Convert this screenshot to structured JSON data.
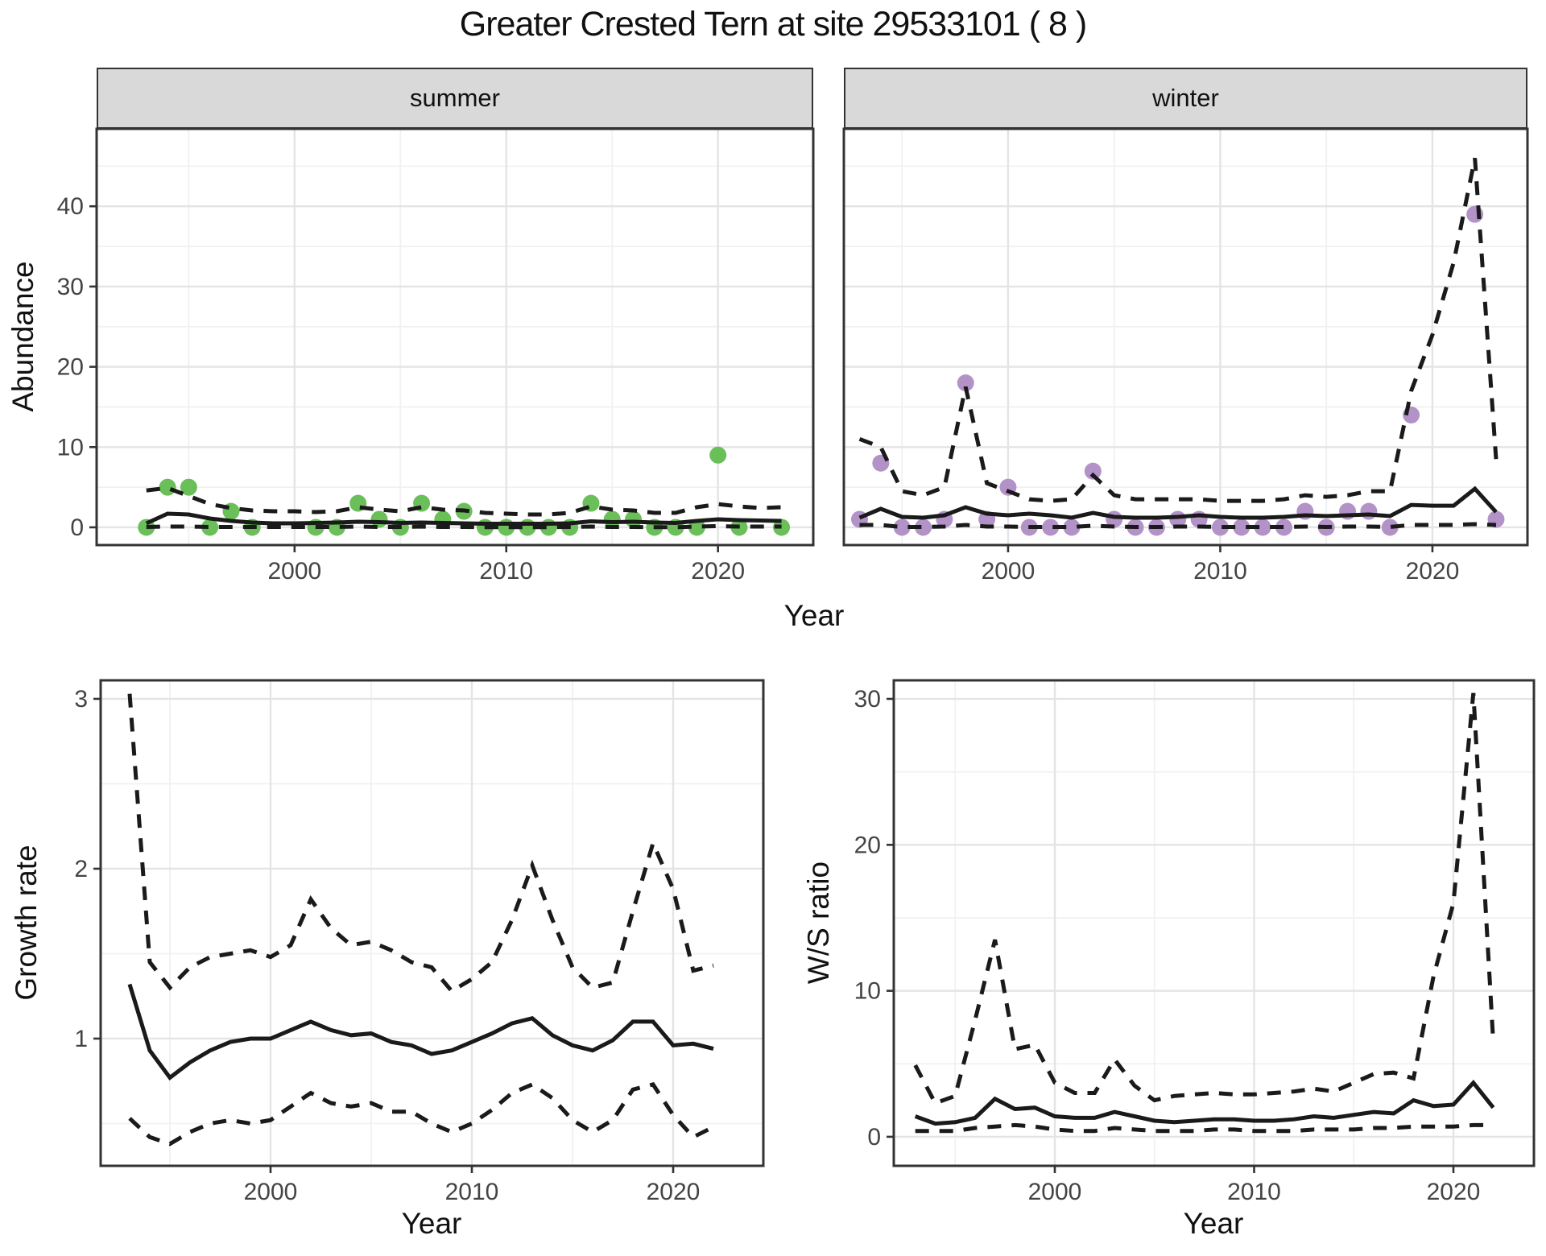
{
  "title": "Greater Crested Tern at site 29533101 ( 8 )",
  "colors": {
    "summer_points": "#6abf59",
    "winter_points": "#b392c8",
    "fit_line": "#1a1a1a",
    "panel_border": "#333333",
    "grid_major": "#e4e4e4",
    "grid_minor": "#f1f1f1",
    "tick_label": "#444444",
    "strip_background": "#d9d9d9"
  },
  "facets": {
    "summer": "summer",
    "winter": "winter"
  },
  "axis_titles": {
    "abundance": "Abundance",
    "year_top": "Year",
    "growth": "Growth rate",
    "year_bottom_left": "Year",
    "ws": "W/S ratio",
    "year_bottom_right": "Year"
  },
  "chart_data": [
    {
      "id": "abundance-summer",
      "type": "line",
      "facet": "summer",
      "xlabel": "Year",
      "ylabel": "Abundance",
      "xlim": [
        1990.65,
        2024.5
      ],
      "ylim": [
        -2.21,
        49.65
      ],
      "xticks": [
        2000,
        2010,
        2020
      ],
      "xticks_minor": [
        1995,
        2005,
        2015
      ],
      "yticks": [
        0,
        10,
        20,
        30,
        40
      ],
      "yticks_minor": [
        5,
        15,
        25,
        35,
        45
      ],
      "show_ylabels": true,
      "points": {
        "name": "summer observed counts",
        "color": "#6abf59",
        "x": [
          1993,
          1994,
          1995,
          1996,
          1997,
          1998,
          2001,
          2002,
          2003,
          2004,
          2005,
          2006,
          2007,
          2008,
          2009,
          2010,
          2011,
          2012,
          2013,
          2014,
          2015,
          2016,
          2017,
          2018,
          2019,
          2020,
          2021,
          2023
        ],
        "y": [
          0,
          5,
          5,
          0,
          2,
          0,
          0,
          0,
          3,
          1,
          0,
          3,
          1,
          2,
          0,
          0,
          0,
          0,
          0,
          3,
          1,
          1,
          0,
          0,
          0,
          9,
          0,
          0
        ]
      },
      "series": [
        {
          "name": "model median",
          "style": "solid",
          "x": [
            1993,
            1994,
            1995,
            1996,
            1997,
            1998,
            1999,
            2000,
            2001,
            2002,
            2003,
            2004,
            2005,
            2006,
            2007,
            2008,
            2009,
            2010,
            2011,
            2012,
            2013,
            2014,
            2015,
            2016,
            2017,
            2018,
            2019,
            2020,
            2021,
            2022,
            2023
          ],
          "y": [
            0.5,
            1.7,
            1.6,
            1.1,
            0.8,
            0.6,
            0.5,
            0.5,
            0.55,
            0.6,
            0.7,
            0.65,
            0.55,
            0.6,
            0.55,
            0.5,
            0.45,
            0.45,
            0.45,
            0.45,
            0.5,
            0.75,
            0.65,
            0.7,
            0.6,
            0.55,
            0.8,
            1.0,
            0.9,
            0.85,
            0.8
          ]
        },
        {
          "name": "upper credible interval",
          "style": "dashed",
          "x": [
            1993,
            1994,
            1995,
            1996,
            1997,
            1998,
            1999,
            2000,
            2001,
            2002,
            2003,
            2004,
            2005,
            2006,
            2007,
            2008,
            2009,
            2010,
            2011,
            2012,
            2013,
            2014,
            2015,
            2016,
            2017,
            2018,
            2019,
            2020,
            2021,
            2022,
            2023
          ],
          "y": [
            4.6,
            4.9,
            3.9,
            2.9,
            2.4,
            2.1,
            2.0,
            2.0,
            1.9,
            2.0,
            2.5,
            2.2,
            2.0,
            2.5,
            2.2,
            2.1,
            1.8,
            1.7,
            1.6,
            1.6,
            1.8,
            2.6,
            2.2,
            2.1,
            1.8,
            1.8,
            2.5,
            2.9,
            2.6,
            2.4,
            2.5
          ]
        },
        {
          "name": "lower credible interval",
          "style": "dashed",
          "x": [
            1993,
            1994,
            1995,
            1996,
            1997,
            1998,
            1999,
            2000,
            2001,
            2002,
            2003,
            2004,
            2005,
            2006,
            2007,
            2008,
            2009,
            2010,
            2011,
            2012,
            2013,
            2014,
            2015,
            2016,
            2017,
            2018,
            2019,
            2020,
            2021,
            2022,
            2023
          ],
          "y": [
            0.05,
            0.1,
            0.1,
            0.05,
            0.05,
            0.05,
            0.05,
            0.05,
            0.05,
            0.05,
            0.1,
            0.05,
            0.05,
            0.1,
            0.05,
            0.05,
            0.02,
            0.02,
            0.02,
            0.02,
            0.05,
            0.1,
            0.05,
            0.05,
            0.02,
            0.02,
            0.1,
            0.15,
            0.1,
            0.1,
            0.1
          ]
        }
      ]
    },
    {
      "id": "abundance-winter",
      "type": "line",
      "facet": "winter",
      "xlabel": "Year",
      "ylabel": "Abundance",
      "xlim": [
        1992.26,
        2024.48
      ],
      "ylim": [
        -2.21,
        49.65
      ],
      "xticks": [
        2000,
        2010,
        2020
      ],
      "xticks_minor": [
        1995,
        2005,
        2015
      ],
      "yticks": [
        0,
        10,
        20,
        30,
        40
      ],
      "yticks_minor": [
        5,
        15,
        25,
        35,
        45
      ],
      "show_ylabels": false,
      "points": {
        "name": "winter observed counts",
        "color": "#b392c8",
        "x": [
          1993,
          1994,
          1995,
          1996,
          1997,
          1998,
          1999,
          2000,
          2001,
          2002,
          2003,
          2004,
          2005,
          2006,
          2007,
          2008,
          2009,
          2010,
          2011,
          2012,
          2013,
          2014,
          2015,
          2016,
          2017,
          2018,
          2019,
          2022,
          2023
        ],
        "y": [
          1,
          8,
          0,
          0,
          1,
          18,
          1,
          5,
          0,
          0,
          0,
          7,
          1,
          0,
          0,
          1,
          1,
          0,
          0,
          0,
          0,
          2,
          0,
          2,
          2,
          0,
          14,
          39,
          1
        ]
      },
      "series": [
        {
          "name": "model median",
          "style": "solid",
          "x": [
            1993,
            1994,
            1995,
            1996,
            1997,
            1998,
            1999,
            2000,
            2001,
            2002,
            2003,
            2004,
            2005,
            2006,
            2007,
            2008,
            2009,
            2010,
            2011,
            2012,
            2013,
            2014,
            2015,
            2016,
            2017,
            2018,
            2019,
            2020,
            2021,
            2022,
            2023
          ],
          "y": [
            1.2,
            2.3,
            1.3,
            1.2,
            1.5,
            2.5,
            1.7,
            1.5,
            1.7,
            1.5,
            1.2,
            1.8,
            1.3,
            1.2,
            1.2,
            1.3,
            1.5,
            1.3,
            1.2,
            1.2,
            1.3,
            1.5,
            1.4,
            1.5,
            1.6,
            1.4,
            2.8,
            2.7,
            2.7,
            4.8,
            1.9
          ]
        },
        {
          "name": "upper credible interval",
          "style": "dashed",
          "x": [
            1993,
            1994,
            1995,
            1996,
            1997,
            1998,
            1999,
            2000,
            2001,
            2002,
            2003,
            2004,
            2005,
            2006,
            2007,
            2008,
            2009,
            2010,
            2011,
            2012,
            2013,
            2014,
            2015,
            2016,
            2017,
            2018,
            2019,
            2020,
            2021,
            2022,
            2023
          ],
          "y": [
            11,
            10,
            4.5,
            4.0,
            5.0,
            17.5,
            5.5,
            4.5,
            3.5,
            3.3,
            3.5,
            6.5,
            4.0,
            3.5,
            3.5,
            3.5,
            3.5,
            3.3,
            3.3,
            3.3,
            3.5,
            4.0,
            3.8,
            4.0,
            4.5,
            4.5,
            17,
            24,
            33,
            46,
            8.5
          ]
        },
        {
          "name": "lower credible interval",
          "style": "dashed",
          "x": [
            1993,
            1994,
            1995,
            1996,
            1997,
            1998,
            1999,
            2000,
            2001,
            2002,
            2003,
            2004,
            2005,
            2006,
            2007,
            2008,
            2009,
            2010,
            2011,
            2012,
            2013,
            2014,
            2015,
            2016,
            2017,
            2018,
            2019,
            2020,
            2021,
            2022,
            2023
          ],
          "y": [
            0.3,
            0.3,
            0.05,
            0.05,
            0.1,
            0.3,
            0.1,
            0.1,
            0.05,
            0.05,
            0.05,
            0.2,
            0.1,
            0.05,
            0.05,
            0.1,
            0.1,
            0.05,
            0.05,
            0.05,
            0.05,
            0.1,
            0.05,
            0.1,
            0.1,
            0.05,
            0.3,
            0.3,
            0.3,
            0.4,
            0.3
          ]
        }
      ]
    },
    {
      "id": "growth-rate",
      "type": "line",
      "xlabel": "Year",
      "ylabel": "Growth rate",
      "xlim": [
        1991.56,
        2024.48
      ],
      "ylim": [
        0.251,
        3.109
      ],
      "xticks": [
        2000,
        2010,
        2020
      ],
      "xticks_minor": [
        1995,
        2005,
        2015
      ],
      "yticks": [
        1,
        2,
        3
      ],
      "yticks_minor": [
        0.5,
        1.5,
        2.5
      ],
      "show_ylabels": true,
      "series": [
        {
          "name": "median growth rate",
          "style": "solid",
          "x": [
            1993,
            1994,
            1995,
            1996,
            1997,
            1998,
            1999,
            2000,
            2001,
            2002,
            2003,
            2004,
            2005,
            2006,
            2007,
            2008,
            2009,
            2010,
            2011,
            2012,
            2013,
            2014,
            2015,
            2016,
            2017,
            2018,
            2019,
            2020,
            2021,
            2022
          ],
          "y": [
            1.32,
            0.93,
            0.77,
            0.86,
            0.93,
            0.98,
            1.0,
            1.0,
            1.05,
            1.1,
            1.05,
            1.02,
            1.03,
            0.98,
            0.96,
            0.91,
            0.93,
            0.98,
            1.03,
            1.09,
            1.12,
            1.02,
            0.96,
            0.93,
            0.99,
            1.1,
            1.1,
            0.96,
            0.97,
            0.94
          ]
        },
        {
          "name": "upper credible interval",
          "style": "dashed",
          "x": [
            1993,
            1994,
            1995,
            1996,
            1997,
            1998,
            1999,
            2000,
            2001,
            2002,
            2003,
            2004,
            2005,
            2006,
            2007,
            2008,
            2009,
            2010,
            2011,
            2012,
            2013,
            2014,
            2015,
            2016,
            2017,
            2018,
            2019,
            2020,
            2021,
            2022
          ],
          "y": [
            3.03,
            1.45,
            1.3,
            1.42,
            1.48,
            1.5,
            1.52,
            1.48,
            1.55,
            1.82,
            1.65,
            1.55,
            1.57,
            1.52,
            1.45,
            1.42,
            1.28,
            1.35,
            1.45,
            1.7,
            2.02,
            1.7,
            1.42,
            1.3,
            1.33,
            1.75,
            2.15,
            1.88,
            1.4,
            1.43
          ]
        },
        {
          "name": "lower credible interval",
          "style": "dashed",
          "x": [
            1993,
            1994,
            1995,
            1996,
            1997,
            1998,
            1999,
            2000,
            2001,
            2002,
            2003,
            2004,
            2005,
            2006,
            2007,
            2008,
            2009,
            2010,
            2011,
            2012,
            2013,
            2014,
            2015,
            2016,
            2017,
            2018,
            2019,
            2020,
            2021,
            2022
          ],
          "y": [
            0.53,
            0.42,
            0.38,
            0.45,
            0.5,
            0.52,
            0.5,
            0.52,
            0.6,
            0.68,
            0.62,
            0.6,
            0.62,
            0.57,
            0.57,
            0.5,
            0.45,
            0.5,
            0.58,
            0.68,
            0.73,
            0.65,
            0.52,
            0.45,
            0.52,
            0.7,
            0.73,
            0.55,
            0.42,
            0.48
          ]
        }
      ]
    },
    {
      "id": "ws-ratio",
      "type": "line",
      "xlabel": "Year",
      "ylabel": "W/S ratio",
      "xlim": [
        1991.92,
        2024.04
      ],
      "ylim": [
        -1.99,
        31.27
      ],
      "xticks": [
        2000,
        2010,
        2020
      ],
      "xticks_minor": [
        1995,
        2005,
        2015
      ],
      "yticks": [
        0,
        10,
        20,
        30
      ],
      "yticks_minor": [
        5,
        15,
        25
      ],
      "show_ylabels": true,
      "series": [
        {
          "name": "median W/S ratio",
          "style": "solid",
          "x": [
            1993,
            1994,
            1995,
            1996,
            1997,
            1998,
            1999,
            2000,
            2001,
            2002,
            2003,
            2004,
            2005,
            2006,
            2007,
            2008,
            2009,
            2010,
            2011,
            2012,
            2013,
            2014,
            2015,
            2016,
            2017,
            2018,
            2019,
            2020,
            2021,
            2022
          ],
          "y": [
            1.4,
            0.9,
            1.0,
            1.3,
            2.6,
            1.9,
            2.0,
            1.4,
            1.3,
            1.3,
            1.7,
            1.4,
            1.1,
            1.0,
            1.1,
            1.2,
            1.2,
            1.1,
            1.1,
            1.2,
            1.4,
            1.3,
            1.5,
            1.7,
            1.6,
            2.5,
            2.1,
            2.2,
            3.7,
            2.0
          ]
        },
        {
          "name": "upper credible interval",
          "style": "dashed",
          "x": [
            1993,
            1994,
            1995,
            1996,
            1997,
            1998,
            1999,
            2000,
            2001,
            2002,
            2003,
            2004,
            2005,
            2006,
            2007,
            2008,
            2009,
            2010,
            2011,
            2012,
            2013,
            2014,
            2015,
            2016,
            2017,
            2018,
            2019,
            2020,
            2021,
            2022
          ],
          "y": [
            4.9,
            2.3,
            2.8,
            8.0,
            13.5,
            6.0,
            6.3,
            3.7,
            3.0,
            3.0,
            5.3,
            3.5,
            2.5,
            2.8,
            2.9,
            3.0,
            2.9,
            2.9,
            3.0,
            3.1,
            3.3,
            3.1,
            3.7,
            4.3,
            4.4,
            4.0,
            11.0,
            16.0,
            30.4,
            6.5
          ]
        },
        {
          "name": "lower credible interval",
          "style": "dashed",
          "x": [
            1993,
            1994,
            1995,
            1996,
            1997,
            1998,
            1999,
            2000,
            2001,
            2002,
            2003,
            2004,
            2005,
            2006,
            2007,
            2008,
            2009,
            2010,
            2011,
            2012,
            2013,
            2014,
            2015,
            2016,
            2017,
            2018,
            2019,
            2020,
            2021,
            2022
          ],
          "y": [
            0.4,
            0.4,
            0.4,
            0.6,
            0.7,
            0.8,
            0.7,
            0.5,
            0.4,
            0.4,
            0.6,
            0.5,
            0.4,
            0.4,
            0.4,
            0.5,
            0.5,
            0.4,
            0.4,
            0.4,
            0.5,
            0.5,
            0.5,
            0.6,
            0.6,
            0.7,
            0.7,
            0.7,
            0.8,
            0.8
          ]
        }
      ]
    }
  ]
}
